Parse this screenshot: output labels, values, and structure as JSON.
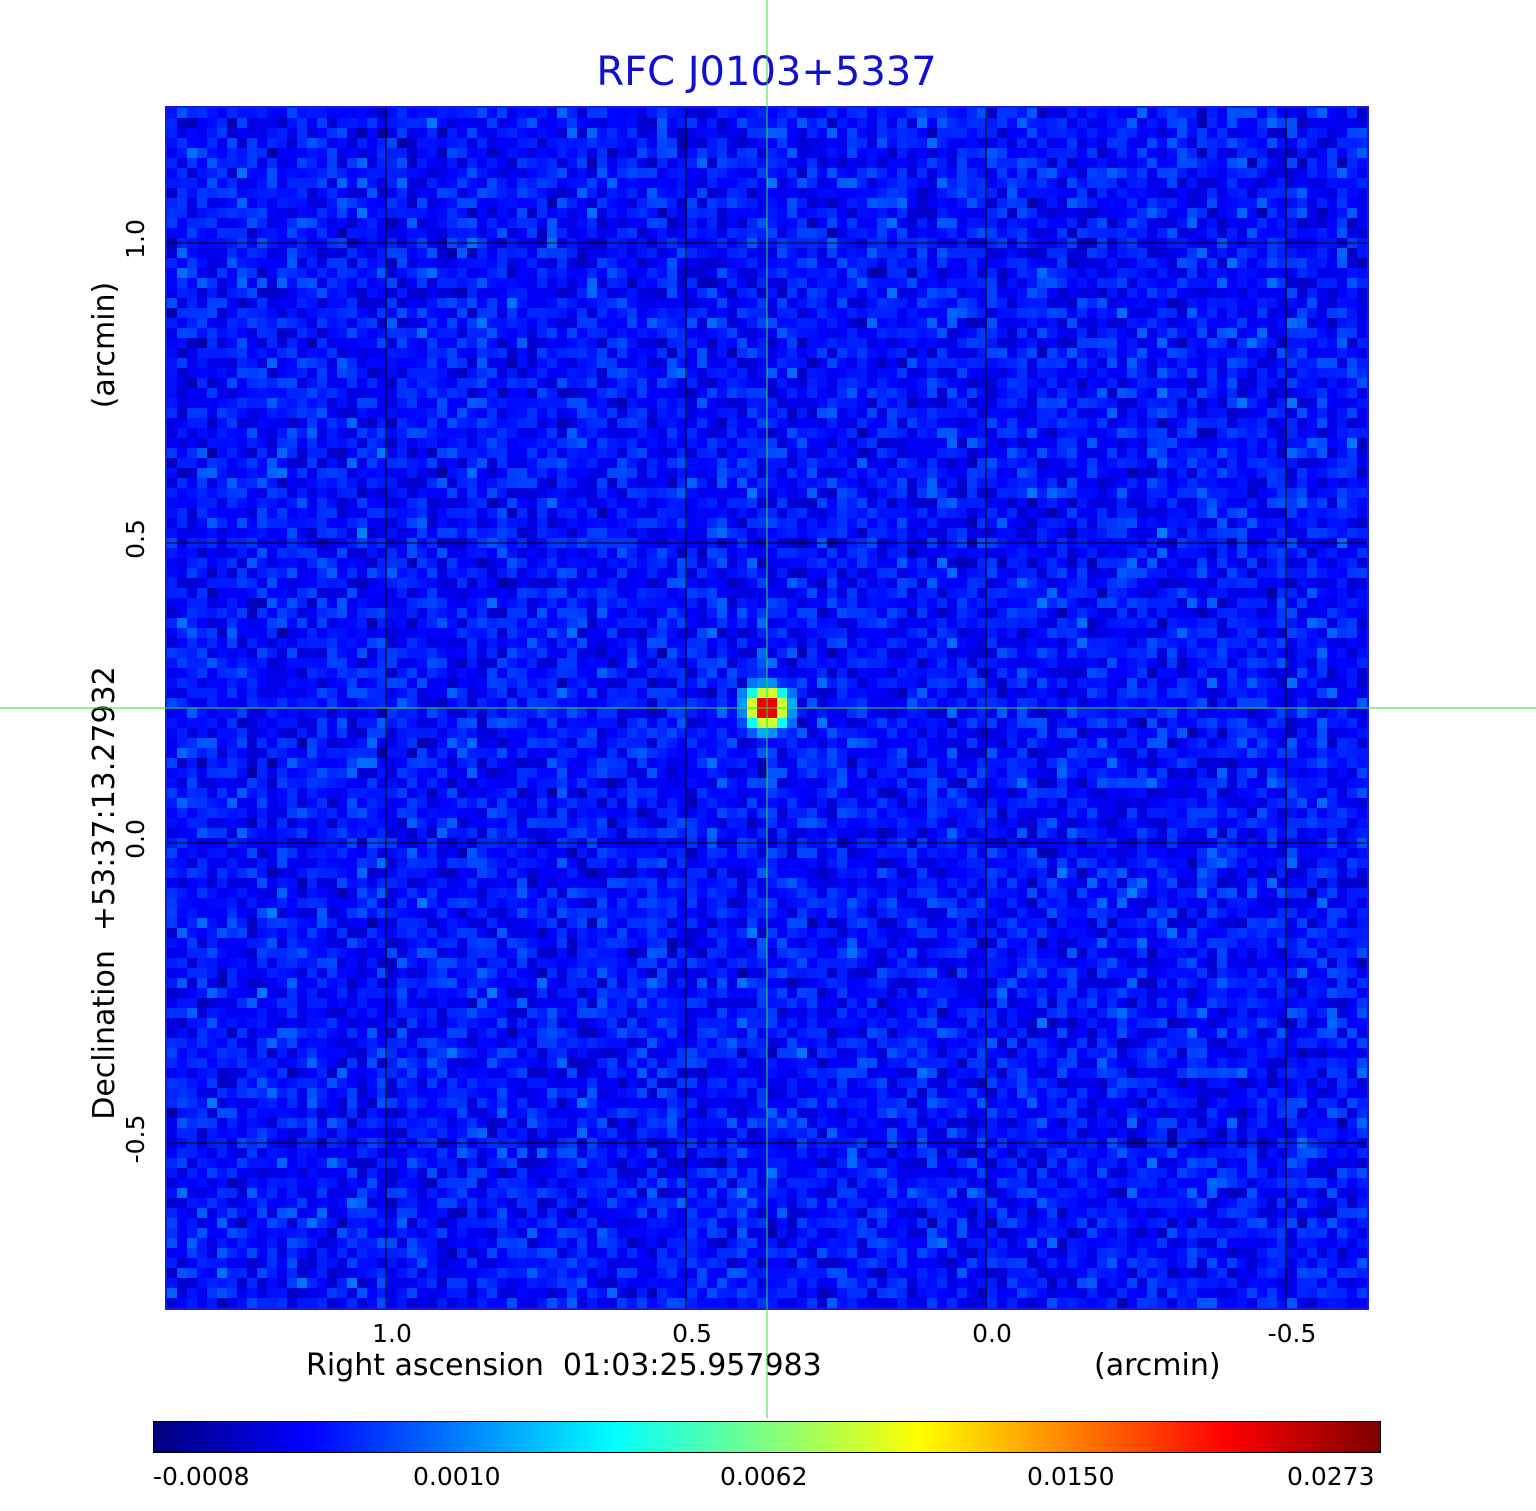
{
  "chart_data": {
    "type": "heatmap",
    "title": "RFC J0103+5337",
    "xlabel": "Right ascension  01:03:25.957983",
    "xunit": "(arcmin)",
    "ylabel": "Declination  +53:37:13.27932",
    "yunit": "(arcmin)",
    "x_ticks": [
      "1.0",
      "0.5",
      "0.0",
      "-0.5"
    ],
    "x_tick_values": [
      1.0,
      0.5,
      0.0,
      -0.5
    ],
    "y_ticks": [
      "1.0",
      "0.5",
      "0.0",
      "-0.5"
    ],
    "y_tick_values": [
      1.0,
      0.5,
      0.0,
      -0.5
    ],
    "xlim": [
      1.365,
      -0.635
    ],
    "ylim": [
      -0.775,
      1.225
    ],
    "grid": true,
    "colormap": "jet",
    "colorbar": {
      "tick_labels": [
        "-0.0008",
        "0.0010",
        "0.0062",
        "0.0150",
        "0.0273"
      ],
      "tick_values": [
        -0.0008,
        0.001,
        0.0062,
        0.015,
        0.0273
      ],
      "placement": "bottom"
    },
    "source_peak": {
      "x": 0.365,
      "y": 0.225,
      "value": 0.0273
    },
    "crosshair": {
      "x": 0.365,
      "y": 0.225,
      "color": "#33dd33"
    },
    "background_level": 0.0002
  }
}
